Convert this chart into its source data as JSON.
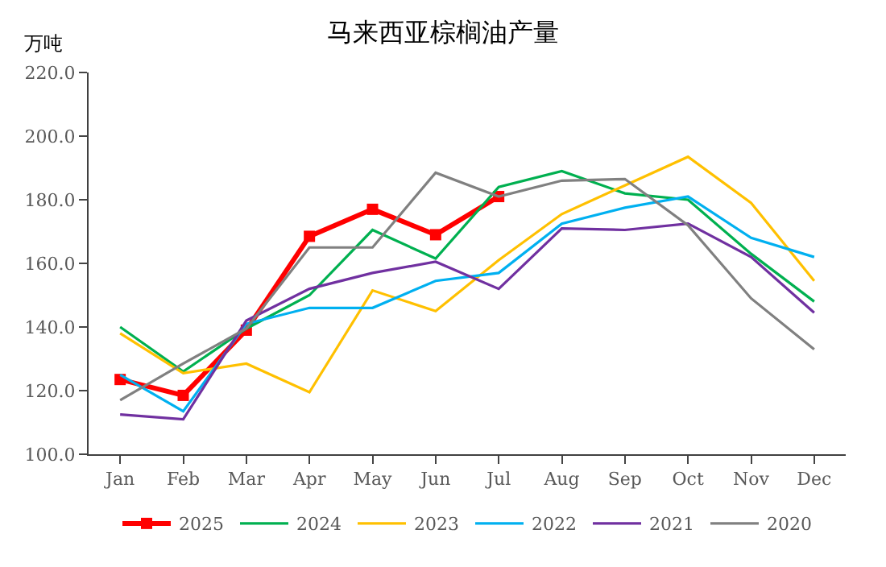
{
  "chart_data": {
    "type": "line",
    "title": "马来西亚棕榈油产量",
    "ylabel": "万吨",
    "categories": [
      "Jan",
      "Feb",
      "Mar",
      "Apr",
      "May",
      "Jun",
      "Jul",
      "Aug",
      "Sep",
      "Oct",
      "Nov",
      "Dec"
    ],
    "ylim": [
      100,
      220
    ],
    "yticks": [
      {
        "value": 100,
        "label": "100.0"
      },
      {
        "value": 120,
        "label": "120.0"
      },
      {
        "value": 140,
        "label": "140.0"
      },
      {
        "value": 160,
        "label": "160.0"
      },
      {
        "value": 180,
        "label": "180.0"
      },
      {
        "value": 200,
        "label": "200.0"
      },
      {
        "value": 220,
        "label": "220.0"
      }
    ],
    "legend": "bottom",
    "series": [
      {
        "name": "2025",
        "color": "#ff0000",
        "marker": "square",
        "values": [
          123.5,
          118.5,
          139,
          168.5,
          177,
          169,
          181,
          null,
          null,
          null,
          null,
          null
        ]
      },
      {
        "name": "2024",
        "color": "#00b050",
        "marker": "none",
        "values": [
          140,
          126,
          139.5,
          150,
          170.5,
          161.5,
          184,
          189,
          182,
          180,
          163,
          148
        ]
      },
      {
        "name": "2023",
        "color": "#ffc000",
        "marker": "none",
        "values": [
          138,
          125.5,
          128.5,
          119.5,
          151.5,
          145,
          161,
          175.5,
          184.5,
          193.5,
          179,
          154.5
        ]
      },
      {
        "name": "2022",
        "color": "#00b0f0",
        "marker": "none",
        "values": [
          125,
          113.5,
          141,
          146,
          146,
          154.5,
          157,
          172.5,
          177.5,
          181,
          168,
          162
        ]
      },
      {
        "name": "2021",
        "color": "#7030a0",
        "marker": "none",
        "values": [
          112.5,
          111,
          142,
          152,
          157,
          160.5,
          152,
          171,
          170.5,
          172.5,
          162,
          144.5
        ]
      },
      {
        "name": "2020",
        "color": "#808080",
        "marker": "none",
        "values": [
          117,
          128.5,
          139.5,
          165,
          165,
          188.5,
          181,
          186,
          186.5,
          172,
          149,
          133
        ]
      }
    ]
  }
}
